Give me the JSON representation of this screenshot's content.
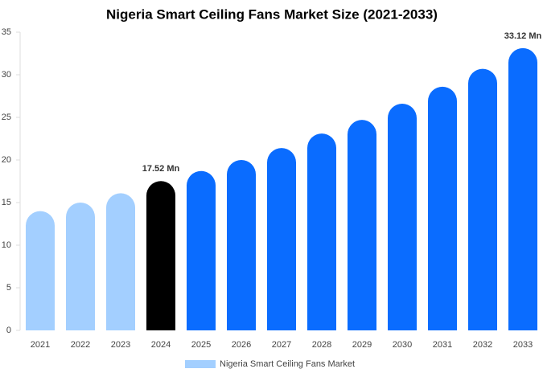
{
  "chart_data": {
    "type": "bar",
    "title": "Nigeria Smart Ceiling Fans Market Size (2021-2033)",
    "categories": [
      "2021",
      "2022",
      "2023",
      "2024",
      "2025",
      "2026",
      "2027",
      "2028",
      "2029",
      "2030",
      "2031",
      "2032",
      "2033"
    ],
    "series": [
      {
        "name": "Nigeria Smart Ceiling Fans Market",
        "color": "#a3cfff",
        "values": [
          14.0,
          15.0,
          16.1,
          17.52,
          18.7,
          20.0,
          21.4,
          23.1,
          24.7,
          26.6,
          28.6,
          30.7,
          33.12
        ],
        "value_labels": [
          null,
          null,
          null,
          "17.52 Mn",
          null,
          null,
          null,
          null,
          null,
          null,
          null,
          null,
          "33.12 Mn"
        ],
        "colors": [
          "#a3cfff",
          "#a3cfff",
          "#a3cfff",
          "#000000",
          "#0a6cff",
          "#0a6cff",
          "#0a6cff",
          "#0a6cff",
          "#0a6cff",
          "#0a6cff",
          "#0a6cff",
          "#0a6cff",
          "#0a6cff"
        ]
      }
    ],
    "ylim": [
      0,
      35
    ],
    "yticks": [
      0,
      5,
      10,
      15,
      20,
      25,
      30,
      35
    ],
    "grid": false,
    "legend": "bottom"
  }
}
